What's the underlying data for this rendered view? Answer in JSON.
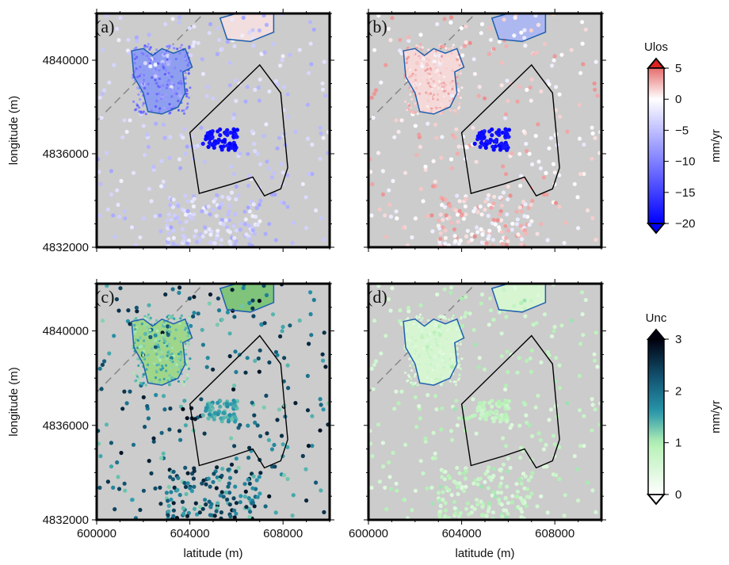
{
  "chart_data": {
    "type": "scatter",
    "xlim": [
      600000,
      610000
    ],
    "ylim": [
      4832000,
      4842000
    ],
    "x_ticks": [
      600000,
      604000,
      608000
    ],
    "y_ticks": [
      4832000,
      4836000,
      4840000
    ],
    "x_tick_labels": [
      "600000",
      "604000",
      "608000"
    ],
    "y_tick_labels": [
      "4832000",
      "4836000",
      "4840000"
    ],
    "xlabel": "latitude (m)",
    "ylabel": "longitude (m)",
    "panels": [
      {
        "label": "(a)",
        "variable": "Ulos",
        "x_axis_labeled": false,
        "y_axis_labeled": true
      },
      {
        "label": "(b)",
        "variable": "Ulos",
        "x_axis_labeled": false,
        "y_axis_labeled": false
      },
      {
        "label": "(c)",
        "variable": "Unc",
        "x_axis_labeled": true,
        "y_axis_labeled": true
      },
      {
        "label": "(d)",
        "variable": "Unc",
        "x_axis_labeled": true,
        "y_axis_labeled": false
      }
    ],
    "colorbars": [
      {
        "title": "Ulos",
        "unit": "mm/yr",
        "range": [
          -20,
          5
        ],
        "ticks": [
          5,
          0,
          -5,
          -10,
          -15,
          -20
        ],
        "tick_labels": [
          "5",
          "0",
          "−5",
          "−10",
          "−15",
          "−20"
        ],
        "colors": {
          "high": "#dd2222",
          "mid": "#ffffff",
          "low": "#0000ff"
        }
      },
      {
        "title": "Unc",
        "unit": "mm/yr",
        "range": [
          0,
          3
        ],
        "ticks": [
          3,
          2,
          1,
          0
        ],
        "tick_labels": [
          "3",
          "2",
          "1",
          "0"
        ],
        "colors": {
          "high": "#000010",
          "mid": "#1a6f8e",
          "low": "#b8f5b8",
          "zero": "#ffffff"
        }
      }
    ],
    "background_color": "#cccccc",
    "outline_color": "#1f5fae",
    "survey_outline_color": "#000000",
    "fault_line_color": "#888888"
  }
}
